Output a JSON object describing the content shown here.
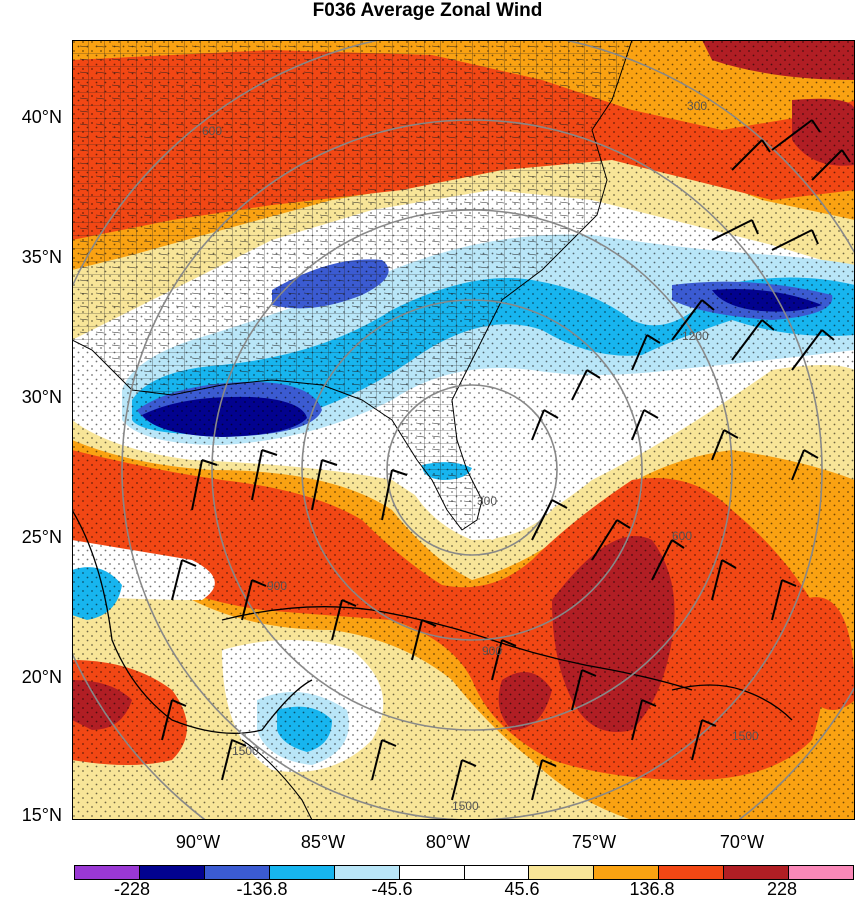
{
  "title": "F036 Average Zonal Wind",
  "map": {
    "lat_labels": [
      "40°N",
      "35°N",
      "30°N",
      "25°N",
      "20°N",
      "15°N"
    ],
    "lon_labels": [
      "90°W",
      "85°W",
      "80°W",
      "75°W",
      "70°W"
    ],
    "contour_labels": [
      "300",
      "600",
      "900",
      "1200",
      "1500",
      "1500",
      "1500",
      "900",
      "600",
      "300"
    ]
  },
  "colorbar": {
    "colors": [
      "#9a38d4",
      "#02028f",
      "#3b5bd2",
      "#17b5ef",
      "#b9e6f8",
      "#ffffff",
      "#ffffff",
      "#f8e598",
      "#faa212",
      "#f24714",
      "#b11e24",
      "#fa88b8"
    ],
    "labels": [
      "-228",
      "-136.8",
      "-45.6",
      "45.6",
      "136.8",
      "228"
    ]
  }
}
